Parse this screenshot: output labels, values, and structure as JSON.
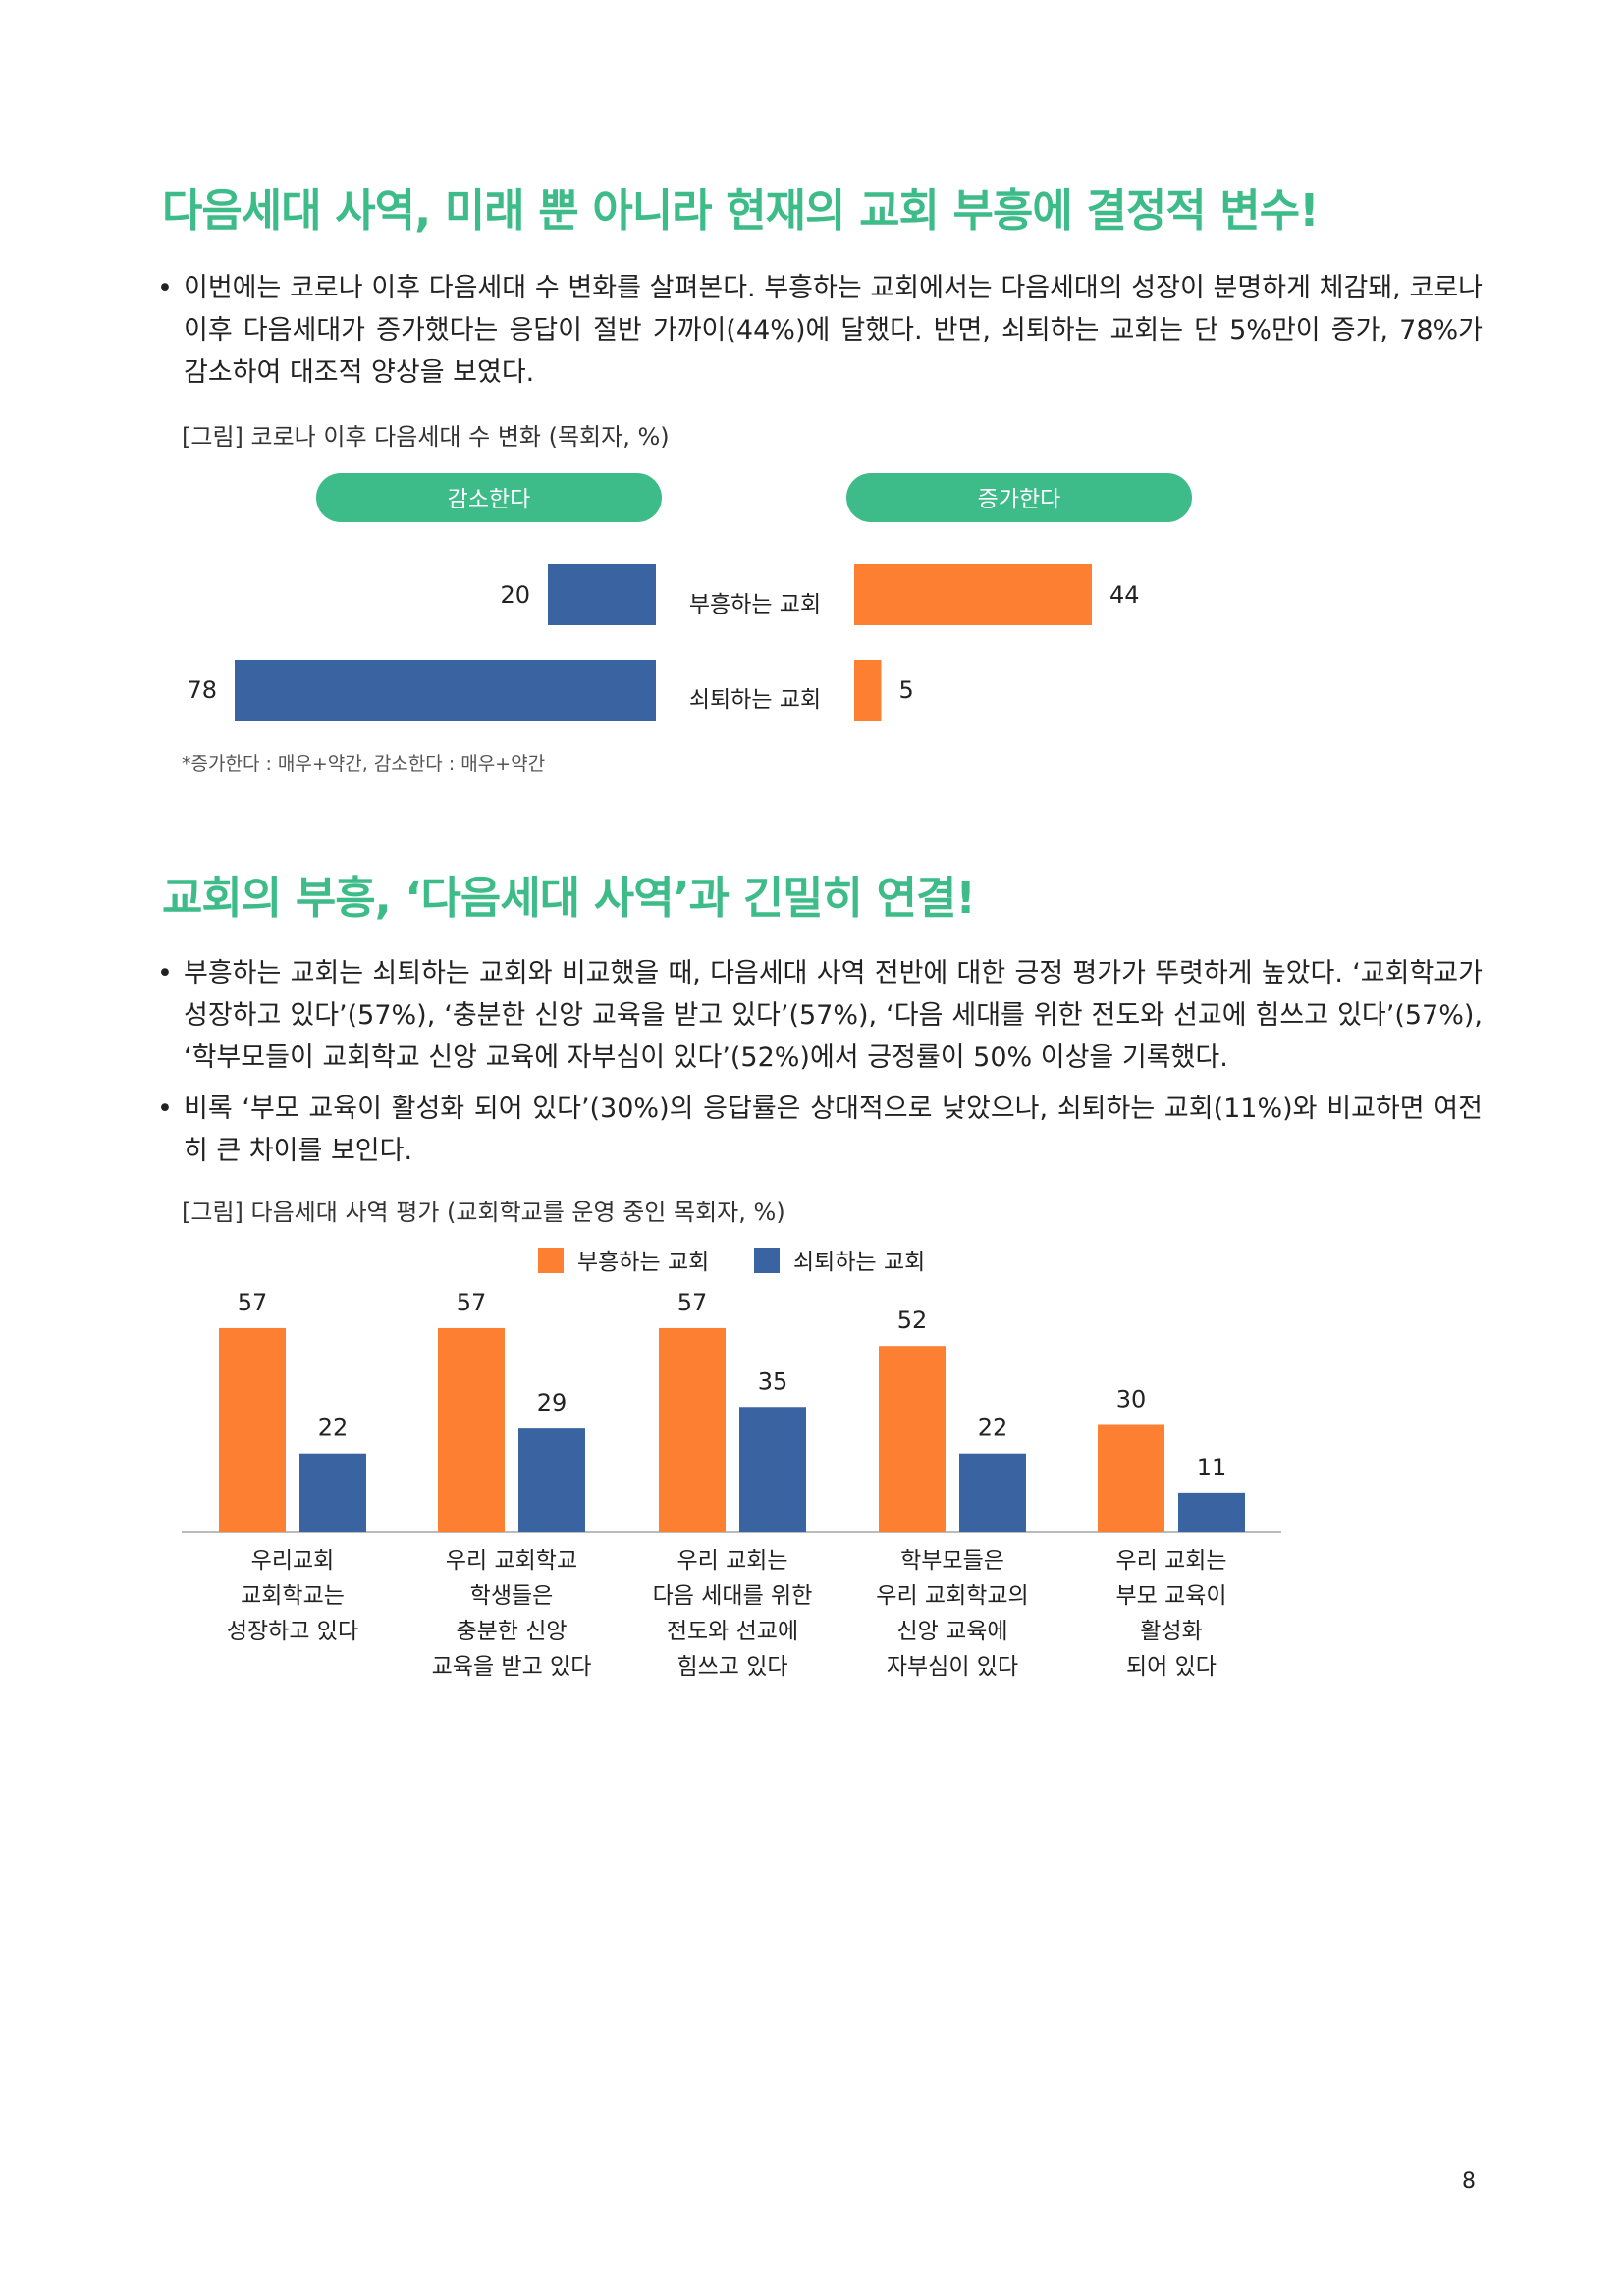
{
  "section1": {
    "heading": "다음세대 사역, 미래 뿐 아니라 현재의 교회 부흥에 결정적 변수!",
    "bullets": [
      "이번에는 코로나 이후 다음세대 수 변화를 살펴본다. 부흥하는 교회에서는 다음세대의 성장이 분명하게 체감돼, 코로나 이후 다음세대가 증가했다는 응답이 절반 가까이(44%)에 달했다. 반면, 쇠퇴하는 교회는 단 5%만이 증가, 78%가 감소하여 대조적 양상을 보였다."
    ],
    "figure_caption": "[그림] 코로나 이후 다음세대 수 변화 (목회자, %)",
    "footnote": "*증가한다 : 매우+약간, 감소한다 : 매우+약간"
  },
  "section2": {
    "heading": "교회의 부흥, ‘다음세대 사역’과 긴밀히 연결!",
    "bullets": [
      "부흥하는 교회는 쇠퇴하는 교회와 비교했을 때, 다음세대 사역 전반에 대한 긍정 평가가 뚜렷하게 높았다. ‘교회학교가 성장하고 있다’(57%), ‘충분한 신앙 교육을 받고 있다’(57%), ‘다음 세대를 위한 전도와 선교에 힘쓰고 있다’(57%), ‘학부모들이 교회학교 신앙 교육에 자부심이 있다’(52%)에서 긍정률이 50% 이상을 기록했다.",
      "비록 ‘부모 교육이 활성화 되어 있다’(30%)의 응답률은 상대적으로 낮았으나, 쇠퇴하는 교회(11%)와 비교하면 여전히 큰 차이를 보인다."
    ],
    "figure_caption": "[그림] 다음세대 사역 평가 (교회학교를 운영 중인 목회자, %)"
  },
  "page_number": "8",
  "colors": {
    "green": "#3dbb88",
    "orange": "#fd7f32",
    "blue": "#3a64a1"
  },
  "chart_data": [
    {
      "type": "bar",
      "orientation": "horizontal-diverging",
      "headers": [
        "감소한다",
        "증가한다"
      ],
      "categories": [
        "부흥하는 교회",
        "쇠퇴하는 교회"
      ],
      "series": [
        {
          "name": "감소한다",
          "values": [
            20,
            78
          ]
        },
        {
          "name": "증가한다",
          "values": [
            44,
            5
          ]
        }
      ]
    },
    {
      "type": "bar",
      "legend_position": "top",
      "categories": [
        [
          "우리교회",
          "교회학교는",
          "성장하고 있다"
        ],
        [
          "우리 교회학교",
          "학생들은",
          "충분한 신앙",
          "교육을 받고 있다"
        ],
        [
          "우리 교회는",
          "다음 세대를 위한",
          "전도와 선교에",
          "힘쓰고 있다"
        ],
        [
          "학부모들은",
          "우리 교회학교의",
          "신앙 교육에",
          "자부심이 있다"
        ],
        [
          "우리 교회는",
          "부모 교육이",
          "활성화",
          "되어 있다"
        ]
      ],
      "series": [
        {
          "name": "부흥하는 교회",
          "values": [
            57,
            57,
            57,
            52,
            30
          ]
        },
        {
          "name": "쇠퇴하는 교회",
          "values": [
            22,
            29,
            35,
            22,
            11
          ]
        }
      ]
    }
  ]
}
